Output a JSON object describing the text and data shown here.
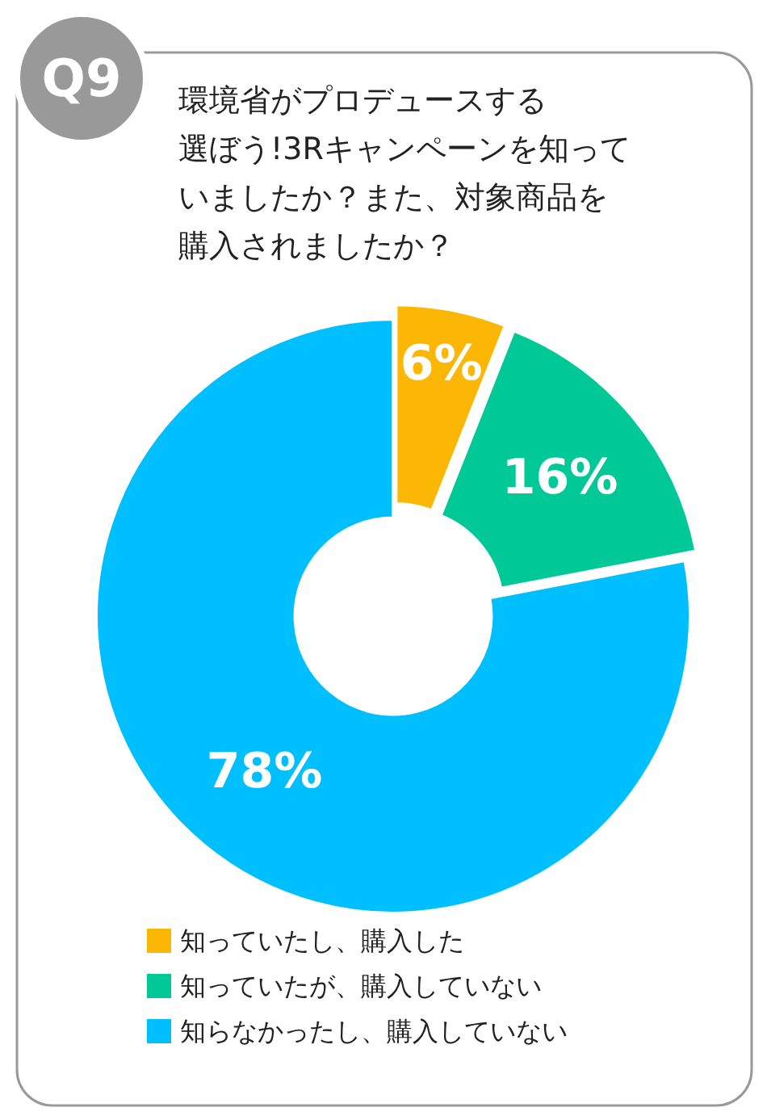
{
  "chart_data": {
    "type": "donut",
    "title": "環境省がプロデュースする選ぼう!3Rキャンペーンを知っていましたか？また、対象商品を購入されましたか？",
    "annotations": [
      "Q9"
    ],
    "categories": [
      "知っていたし、購入した",
      "知っていたが、購入していない",
      "知らなかったし、購入していない"
    ],
    "values": [
      6,
      16,
      78
    ],
    "colors": [
      "#fbb703",
      "#00c896",
      "#00bfff"
    ],
    "value_labels": [
      "6%",
      "16%",
      "78%"
    ],
    "legend": "bottom"
  }
}
